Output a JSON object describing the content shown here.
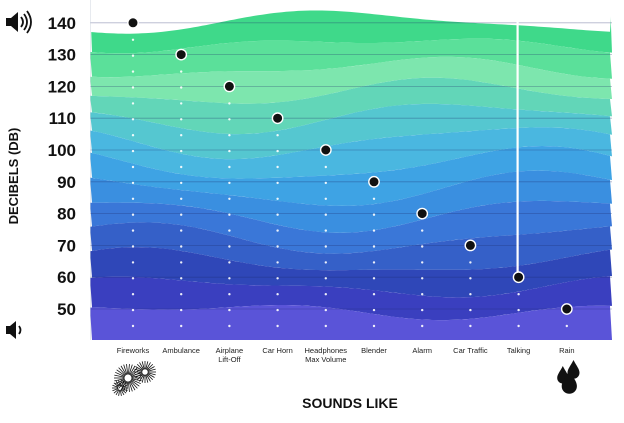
{
  "chart_data": {
    "type": "scatter",
    "title": "",
    "xlabel": "SOUNDS LIKE",
    "ylabel": "DECIBELS (DB)",
    "ylim": [
      40,
      145
    ],
    "y_ticks": [
      50,
      60,
      70,
      80,
      90,
      100,
      110,
      120,
      130,
      140
    ],
    "grid": true,
    "categories": [
      [
        "Fireworks"
      ],
      [
        "Ambulance"
      ],
      [
        "Airplane",
        "Lift-Off"
      ],
      [
        "Car Horn"
      ],
      [
        "Headphones",
        "Max Volume"
      ],
      [
        "Blender"
      ],
      [
        "Alarm"
      ],
      [
        "Car Traffic"
      ],
      [
        "Talking"
      ],
      [
        "Rain"
      ]
    ],
    "values": [
      140,
      130,
      120,
      110,
      100,
      90,
      80,
      70,
      60,
      50
    ],
    "marker_line_category": "Talking",
    "icons": {
      "loud": "speaker-loud-icon",
      "quiet": "speaker-quiet-icon",
      "fireworks": "fireworks-icon",
      "rain": "raindrops-icon"
    },
    "band_colors": [
      "#3fd98a",
      "#5be09a",
      "#7de6ae",
      "#62d6b8",
      "#55c7d0",
      "#4ab7e0",
      "#3ea3e4",
      "#3a8fe0",
      "#3a77d8",
      "#3560c8",
      "#2f47b8",
      "#3a3fbf",
      "#5a54d8"
    ]
  }
}
